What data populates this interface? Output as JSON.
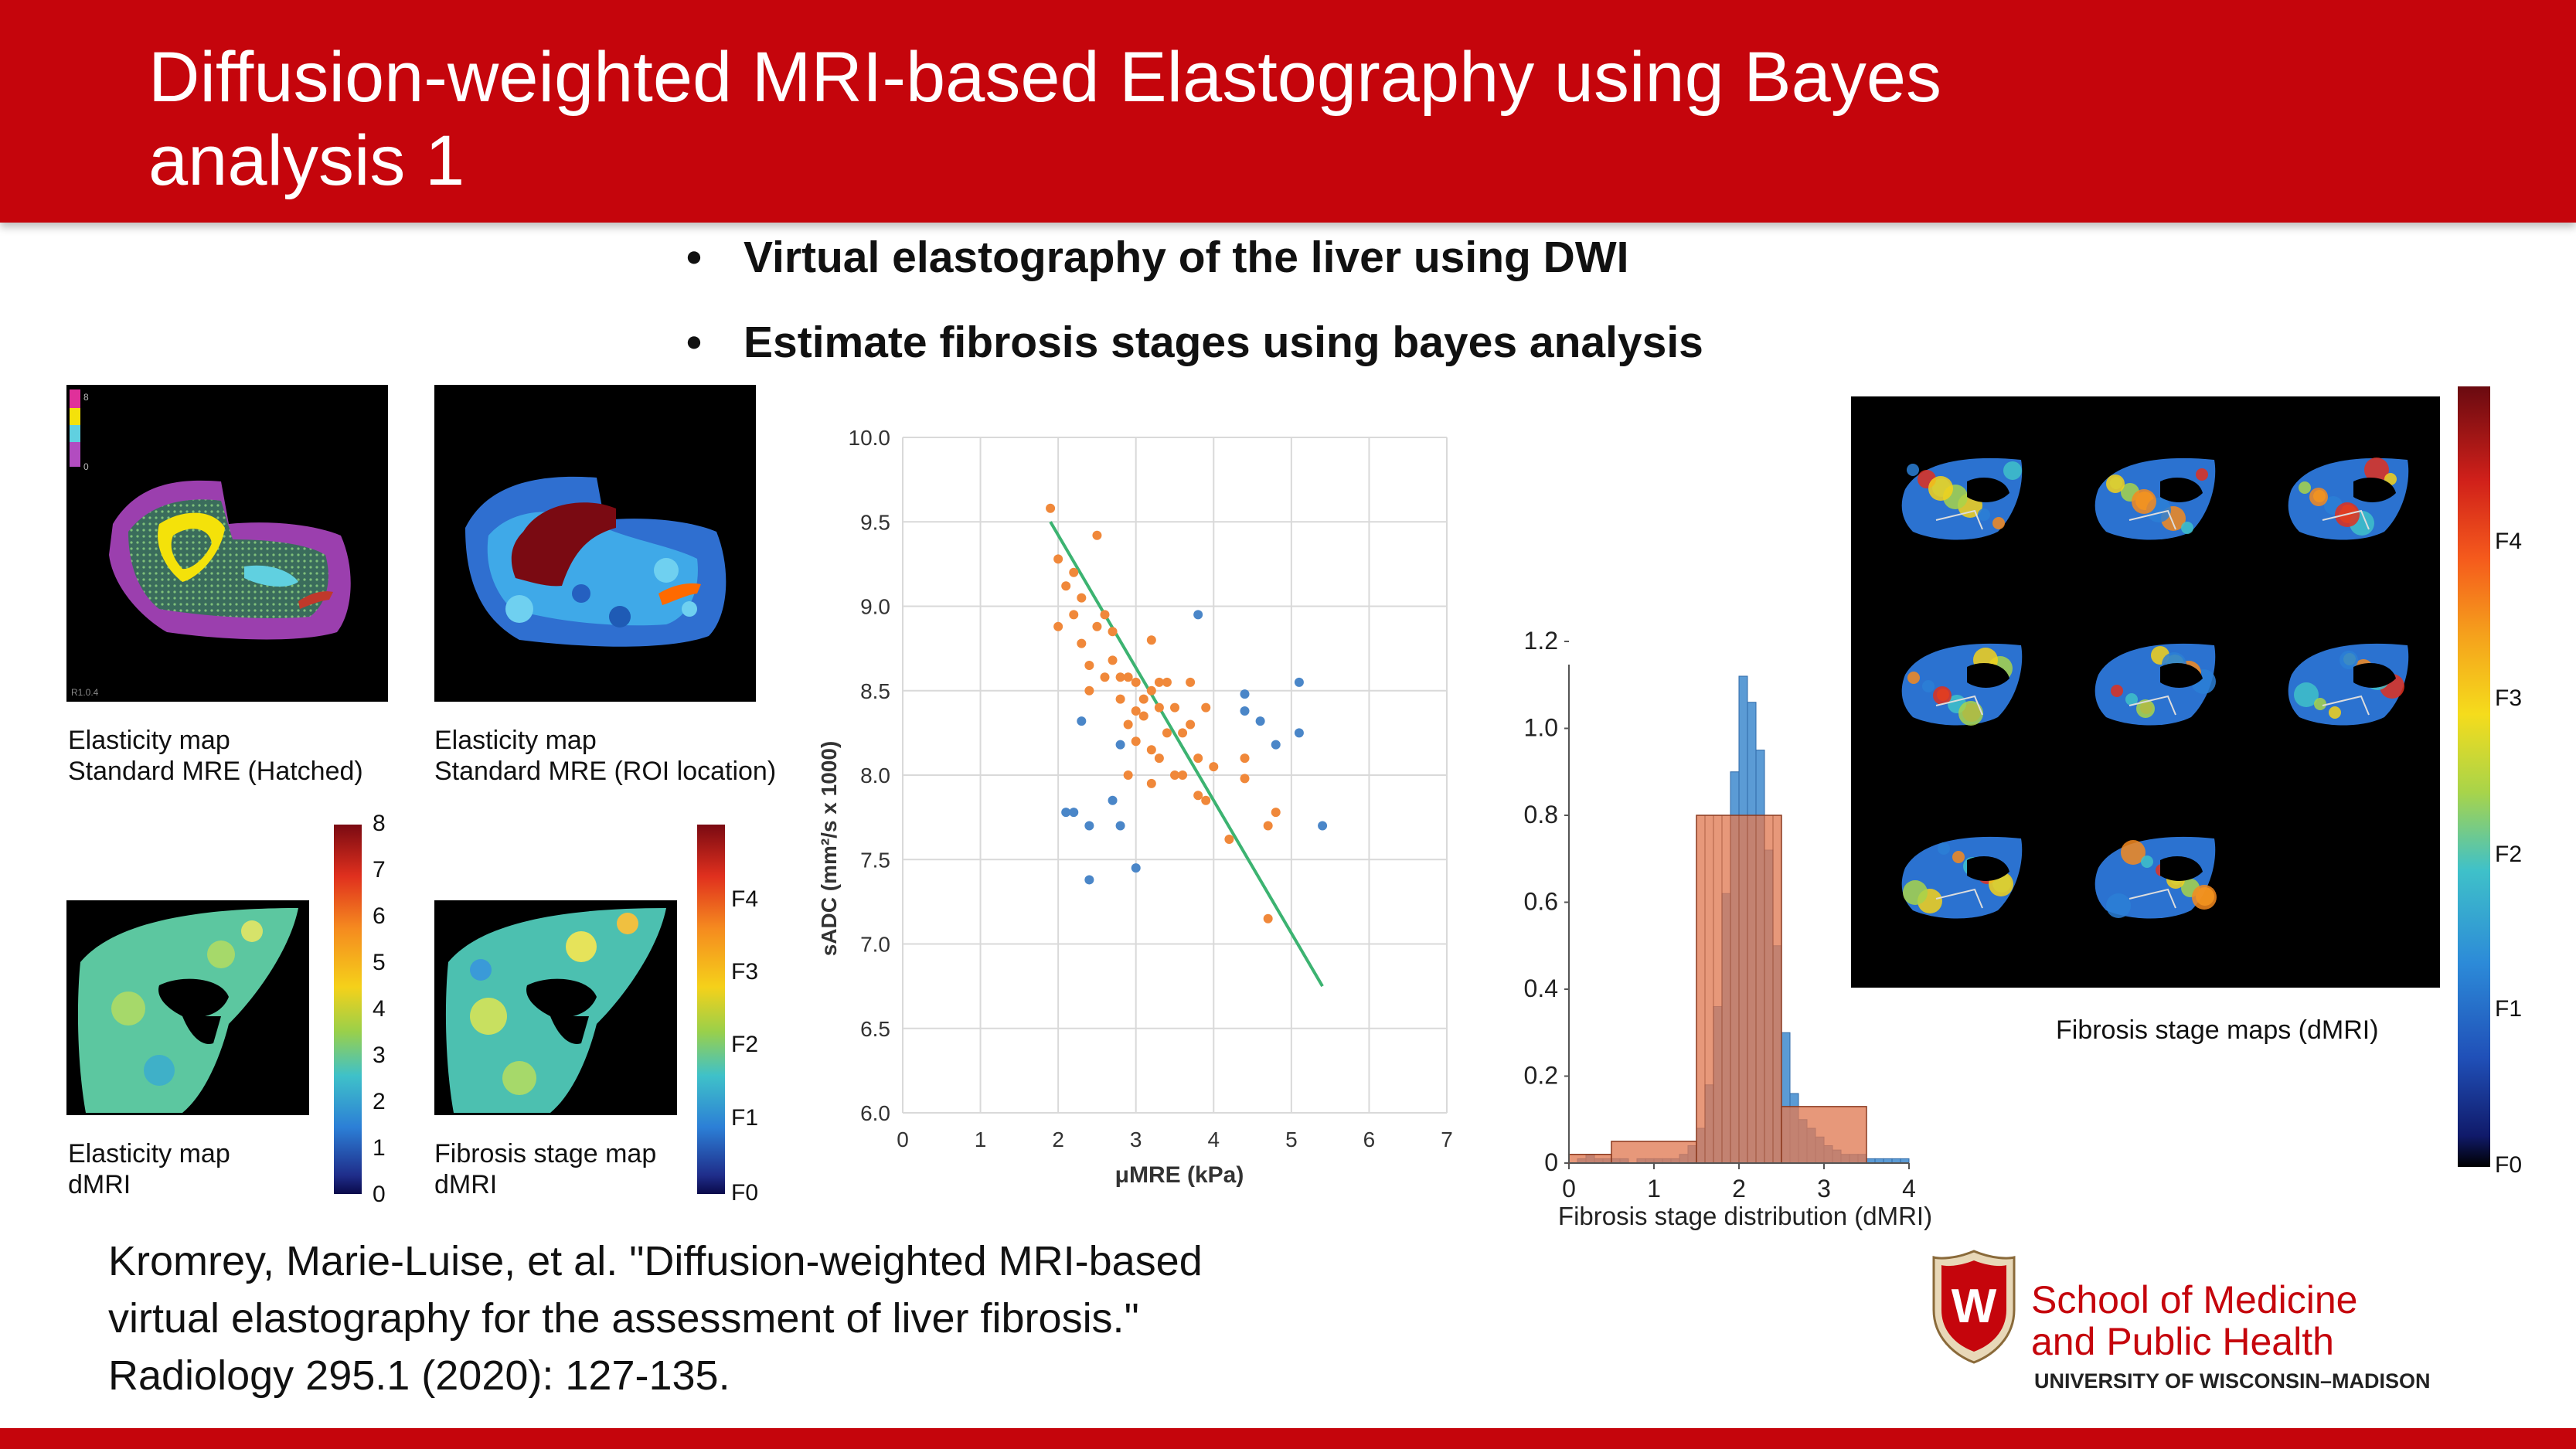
{
  "slide": {
    "title_line1": "Diffusion-weighted MRI-based Elastography using Bayes",
    "title_line2": "analysis 1",
    "bullets": [
      "Virtual elastography of the liver using DWI",
      "Estimate fibrosis stages using bayes analysis"
    ],
    "citation": "Kromrey, Marie-Luise, et al. \"Diffusion-weighted MRI-based virtual elastography for the assessment of liver fibrosis.\" Radiology 295.1 (2020): 127-135."
  },
  "figure": {
    "panels": [
      {
        "line1": "Elasticity map",
        "line2": "Standard MRE (Hatched)"
      },
      {
        "line1": "Elasticity map",
        "line2": "Standard MRE (ROI location)"
      },
      {
        "line1": "Elasticity map",
        "line2": "dMRI"
      },
      {
        "line1": "Fibrosis stage map",
        "line2": "dMRI"
      }
    ],
    "mre_small_legend": {
      "top": "8",
      "bottom": "0",
      "corner": "R1.0.4"
    },
    "elasticity_colorbar_ticks": [
      "8",
      "7",
      "6",
      "5",
      "4",
      "3",
      "2",
      "1",
      "0"
    ],
    "stage_colorbar_ticks": [
      "F4",
      "F3",
      "F2",
      "F1",
      "F0"
    ],
    "right_colorbar_ticks": [
      "F4",
      "F3",
      "F2",
      "F1",
      "F0"
    ],
    "stage_maps_caption": "Fibrosis stage maps (dMRI)"
  },
  "logo": {
    "line1": "School of Medicine",
    "line2": "and Public Health",
    "line3": "UNIVERSITY OF WISCONSIN–MADISON",
    "crest_letter": "W"
  },
  "colors": {
    "brand_red": "#c5050c",
    "orange_points": "#f0883a",
    "blue_points": "#4a86c8",
    "fit_line": "#3cb371",
    "hist_blue": "#5b9bd5",
    "hist_orange": "#e07b54"
  },
  "chart_data": [
    {
      "type": "scatter",
      "title": "",
      "xlabel": "μMRE (kPa)",
      "ylabel": "sADC (mm²/s x 1000)",
      "xlim": [
        0,
        7
      ],
      "ylim": [
        6.0,
        10.0
      ],
      "xticks": [
        "0",
        "1",
        "2",
        "3",
        "4",
        "5",
        "6",
        "7"
      ],
      "yticks": [
        "6.0",
        "6.5",
        "7.0",
        "7.5",
        "8.0",
        "8.5",
        "9.0",
        "9.5",
        "10.0"
      ],
      "grid": true,
      "series": [
        {
          "name": "orange",
          "points": [
            [
              1.9,
              9.58
            ],
            [
              2.0,
              9.28
            ],
            [
              2.0,
              8.88
            ],
            [
              2.1,
              9.12
            ],
            [
              2.2,
              9.2
            ],
            [
              2.2,
              8.95
            ],
            [
              2.3,
              9.05
            ],
            [
              2.3,
              8.78
            ],
            [
              2.4,
              8.65
            ],
            [
              2.4,
              8.5
            ],
            [
              2.5,
              9.42
            ],
            [
              2.5,
              8.88
            ],
            [
              2.6,
              8.95
            ],
            [
              2.6,
              8.58
            ],
            [
              2.7,
              8.85
            ],
            [
              2.7,
              8.68
            ],
            [
              2.8,
              8.58
            ],
            [
              2.8,
              8.45
            ],
            [
              2.9,
              8.58
            ],
            [
              2.9,
              8.3
            ],
            [
              3.0,
              8.55
            ],
            [
              3.0,
              8.38
            ],
            [
              3.0,
              8.2
            ],
            [
              3.1,
              8.45
            ],
            [
              3.1,
              8.35
            ],
            [
              3.2,
              8.8
            ],
            [
              3.2,
              8.5
            ],
            [
              3.2,
              8.15
            ],
            [
              3.3,
              8.55
            ],
            [
              3.3,
              8.4
            ],
            [
              3.3,
              8.1
            ],
            [
              3.4,
              8.55
            ],
            [
              3.4,
              8.25
            ],
            [
              3.5,
              8.4
            ],
            [
              3.5,
              8.0
            ],
            [
              3.6,
              8.25
            ],
            [
              3.6,
              8.0
            ],
            [
              3.7,
              8.55
            ],
            [
              3.7,
              8.3
            ],
            [
              3.8,
              8.1
            ],
            [
              3.8,
              7.88
            ],
            [
              3.9,
              8.4
            ],
            [
              3.9,
              7.85
            ],
            [
              4.0,
              8.05
            ],
            [
              4.2,
              7.62
            ],
            [
              3.2,
              7.95
            ],
            [
              2.9,
              8.0
            ],
            [
              4.4,
              8.1
            ],
            [
              4.4,
              7.98
            ],
            [
              4.7,
              7.7
            ],
            [
              4.8,
              7.78
            ],
            [
              4.7,
              7.15
            ]
          ]
        },
        {
          "name": "blue",
          "points": [
            [
              2.1,
              7.78
            ],
            [
              2.2,
              7.78
            ],
            [
              2.3,
              8.32
            ],
            [
              2.4,
              7.7
            ],
            [
              2.4,
              7.38
            ],
            [
              2.7,
              7.85
            ],
            [
              2.8,
              8.18
            ],
            [
              2.8,
              7.7
            ],
            [
              3.0,
              7.45
            ],
            [
              3.8,
              8.95
            ],
            [
              4.4,
              8.48
            ],
            [
              4.4,
              8.38
            ],
            [
              4.6,
              8.32
            ],
            [
              4.8,
              8.18
            ],
            [
              5.1,
              8.55
            ],
            [
              5.1,
              8.25
            ],
            [
              5.4,
              7.7
            ]
          ]
        }
      ],
      "fit_line": [
        [
          1.9,
          9.5
        ],
        [
          5.4,
          6.75
        ]
      ]
    },
    {
      "type": "histogram",
      "title": "",
      "xlabel": "Fibrosis stage distribution (dMRI)",
      "ylabel": "",
      "xlim": [
        0,
        4
      ],
      "ylim": [
        0,
        1.2
      ],
      "xticks": [
        "0",
        "1",
        "2",
        "3",
        "4"
      ],
      "yticks": [
        "0",
        "0.2",
        "0.4",
        "0.6",
        "0.8",
        "1.0",
        "1.2"
      ],
      "series": [
        {
          "name": "blue",
          "bin_width": 0.1,
          "bin_centers": [
            0.15,
            0.25,
            0.35,
            0.45,
            0.55,
            0.65,
            0.75,
            0.85,
            0.95,
            1.05,
            1.15,
            1.25,
            1.35,
            1.45,
            1.55,
            1.65,
            1.75,
            1.85,
            1.95,
            2.05,
            2.15,
            2.25,
            2.35,
            2.45,
            2.55,
            2.65,
            2.75,
            2.85,
            2.95,
            3.05,
            3.15,
            3.25,
            3.35,
            3.45,
            3.55,
            3.65,
            3.75,
            3.85,
            3.95
          ],
          "values": [
            0.01,
            0.02,
            0.01,
            0.01,
            0.01,
            0.01,
            0.0,
            0.01,
            0.01,
            0.01,
            0.01,
            0.01,
            0.02,
            0.04,
            0.08,
            0.18,
            0.36,
            0.62,
            0.9,
            1.12,
            1.06,
            0.95,
            0.72,
            0.5,
            0.3,
            0.16,
            0.1,
            0.08,
            0.06,
            0.04,
            0.03,
            0.02,
            0.02,
            0.02,
            0.01,
            0.01,
            0.01,
            0.01,
            0.01
          ]
        },
        {
          "name": "orange",
          "bin_edges": [
            0.0,
            0.5,
            1.5,
            2.5,
            3.5
          ],
          "values": [
            0.02,
            0.05,
            0.8,
            0.13
          ]
        }
      ]
    }
  ]
}
